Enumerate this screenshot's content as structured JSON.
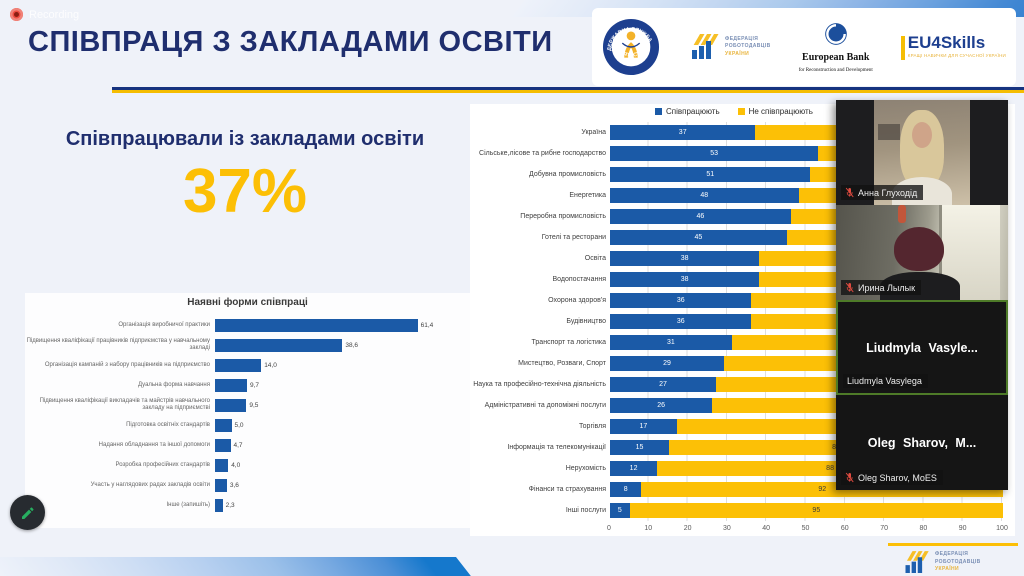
{
  "window": {
    "recording_label": "Recording"
  },
  "header": {
    "title": "СПІВПРАЦЯ З ЗАКЛАДАМИ ОСВІТИ",
    "logos": {
      "employment_service": {
        "ring_text_top": "ДЕРЖАВНА СЛУЖБА",
        "ring_text_bottom": "ЗАЙНЯТОСТІ"
      },
      "fru": {
        "line1": "ФЕДЕРАЦІЯ",
        "line2": "РОБОТОДАВЦІВ",
        "line3": "УКРАЇНИ"
      },
      "ebrd": {
        "name": "European Bank",
        "subtitle": "for Reconstruction and Development"
      },
      "eu4skills": {
        "name": "EU4Skills",
        "subtitle": "КРАЩІ НАВИЧКИ ДЛЯ СУЧАСНОЇ УКРАЇНИ"
      }
    }
  },
  "stat": {
    "caption": "Співпрацювали із закладами освіти",
    "value": "37%",
    "value_color": "#fcbf05"
  },
  "chart_data": [
    {
      "type": "bar",
      "orientation": "horizontal",
      "title": "Наявні форми співпраці",
      "categories": [
        "Організація виробничої практики",
        "Підвищення кваліфікації працівників підприємства у навчальному закладі",
        "Організація кампаній з набору працівників на підприємство",
        "Дуальна форма навчання",
        "Підвищення кваліфікації викладачів та майстрів навчального закладу на підприємстві",
        "Підготовка освітніх стандартів",
        "Надання обладнання та іншої допомоги",
        "Розробка професійних стандартів",
        "Участь у наглядових радах закладів освіти",
        "Інше (запишіть)"
      ],
      "values": [
        61.4,
        38.6,
        14.0,
        9.7,
        9.5,
        5.0,
        4.7,
        4.0,
        3.6,
        2.3
      ],
      "bar_color": "#1b5aa7",
      "value_format": "decimal-comma",
      "xlim": [
        0,
        70
      ],
      "grid": false
    },
    {
      "type": "stacked_bar",
      "orientation": "horizontal",
      "categories": [
        "Україна",
        "Сільське,лісове та рибне господарство",
        "Добувна промисловість",
        "Енергетика",
        "Переробна промисловість",
        "Готелі та ресторани",
        "Освіта",
        "Водопостачання",
        "Охорона здоров'я",
        "Будівництво",
        "Транспорт та логістика",
        "Мистецтво, Розваги, Спорт",
        "Наука та професійно-технічна діяльність",
        "Адміністративні та допоміжні послуги",
        "Торгівля",
        "Інформація та телекомунікації",
        "Нерухомість",
        "Фінанси та страхування",
        "Інші послуги"
      ],
      "series": [
        {
          "name": "Співпрацюють",
          "color": "#1b5aa7",
          "values": [
            37,
            53,
            51,
            48,
            46,
            45,
            38,
            38,
            36,
            36,
            31,
            29,
            27,
            26,
            17,
            15,
            12,
            8,
            5
          ]
        },
        {
          "name": "Не співпрацюють",
          "color": "#fcc006",
          "values": [
            63,
            47,
            49,
            52,
            54,
            55,
            62,
            62,
            64,
            64,
            69,
            71,
            73,
            74,
            83,
            85,
            88,
            92,
            95
          ]
        }
      ],
      "xlim": [
        0,
        100
      ],
      "x_ticks": [
        0,
        10,
        20,
        30,
        40,
        50,
        60,
        70,
        80,
        90,
        100
      ],
      "legend_position": "top",
      "grid": true
    }
  ],
  "participants": [
    {
      "name": "Анна Глуходід",
      "muted": true
    },
    {
      "name": "Ирина Лылык",
      "muted": true
    },
    {
      "center_text": "Liudmyla  Vasyle...",
      "name": "Liudmyla Vasylega",
      "muted": false,
      "active_speaker": true
    },
    {
      "center_text": "Oleg  Sharov, M...",
      "name": "Oleg Sharov, MoES",
      "muted": true
    }
  ],
  "footer_logo": {
    "line1": "ФЕДЕРАЦІЯ",
    "line2": "РОБОТОДАВЦІВ",
    "line3": "УКРАЇНИ"
  },
  "colors": {
    "accent_navy": "#1f2e6e",
    "accent_yellow": "#fcbf05",
    "bar_blue": "#1b5aa7",
    "bar_yellow": "#fcc006"
  }
}
